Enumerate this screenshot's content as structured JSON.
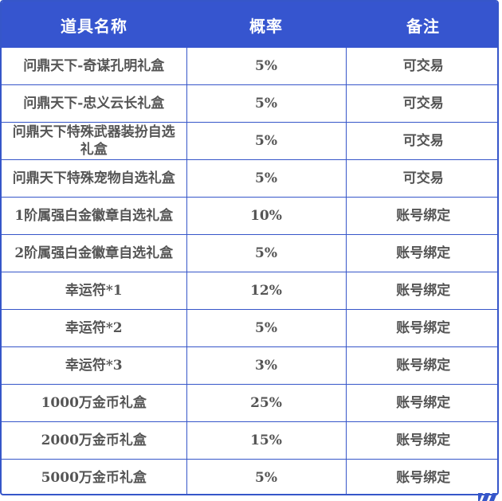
{
  "table": {
    "headers": [
      "道具名称",
      "概率",
      "备注"
    ],
    "rows": [
      {
        "name": "问鼎天下-奇谋孔明礼盒",
        "rate": "5%",
        "note": "可交易"
      },
      {
        "name": "问鼎天下-忠义云长礼盒",
        "rate": "5%",
        "note": "可交易"
      },
      {
        "name": "问鼎天下特殊武器装扮自选礼盒",
        "rate": "5%",
        "note": "可交易"
      },
      {
        "name": "问鼎天下特殊宠物自选礼盒",
        "rate": "5%",
        "note": "可交易"
      },
      {
        "name": "1阶属强白金徽章自选礼盒",
        "rate": "10%",
        "note": "账号绑定"
      },
      {
        "name": "2阶属强白金徽章自选礼盒",
        "rate": "5%",
        "note": "账号绑定"
      },
      {
        "name": "幸运符*1",
        "rate": "12%",
        "note": "账号绑定"
      },
      {
        "name": "幸运符*2",
        "rate": "5%",
        "note": "账号绑定"
      },
      {
        "name": "幸运符*3",
        "rate": "3%",
        "note": "账号绑定"
      },
      {
        "name": "1000万金币礼盒",
        "rate": "25%",
        "note": "账号绑定"
      },
      {
        "name": "2000万金币礼盒",
        "rate": "15%",
        "note": "账号绑定"
      },
      {
        "name": "5000万金币礼盒",
        "rate": "5%",
        "note": "账号绑定"
      }
    ]
  },
  "colors": {
    "header_bg": "#3655cf",
    "border": "#3656c9",
    "cell_text": "#555555"
  }
}
